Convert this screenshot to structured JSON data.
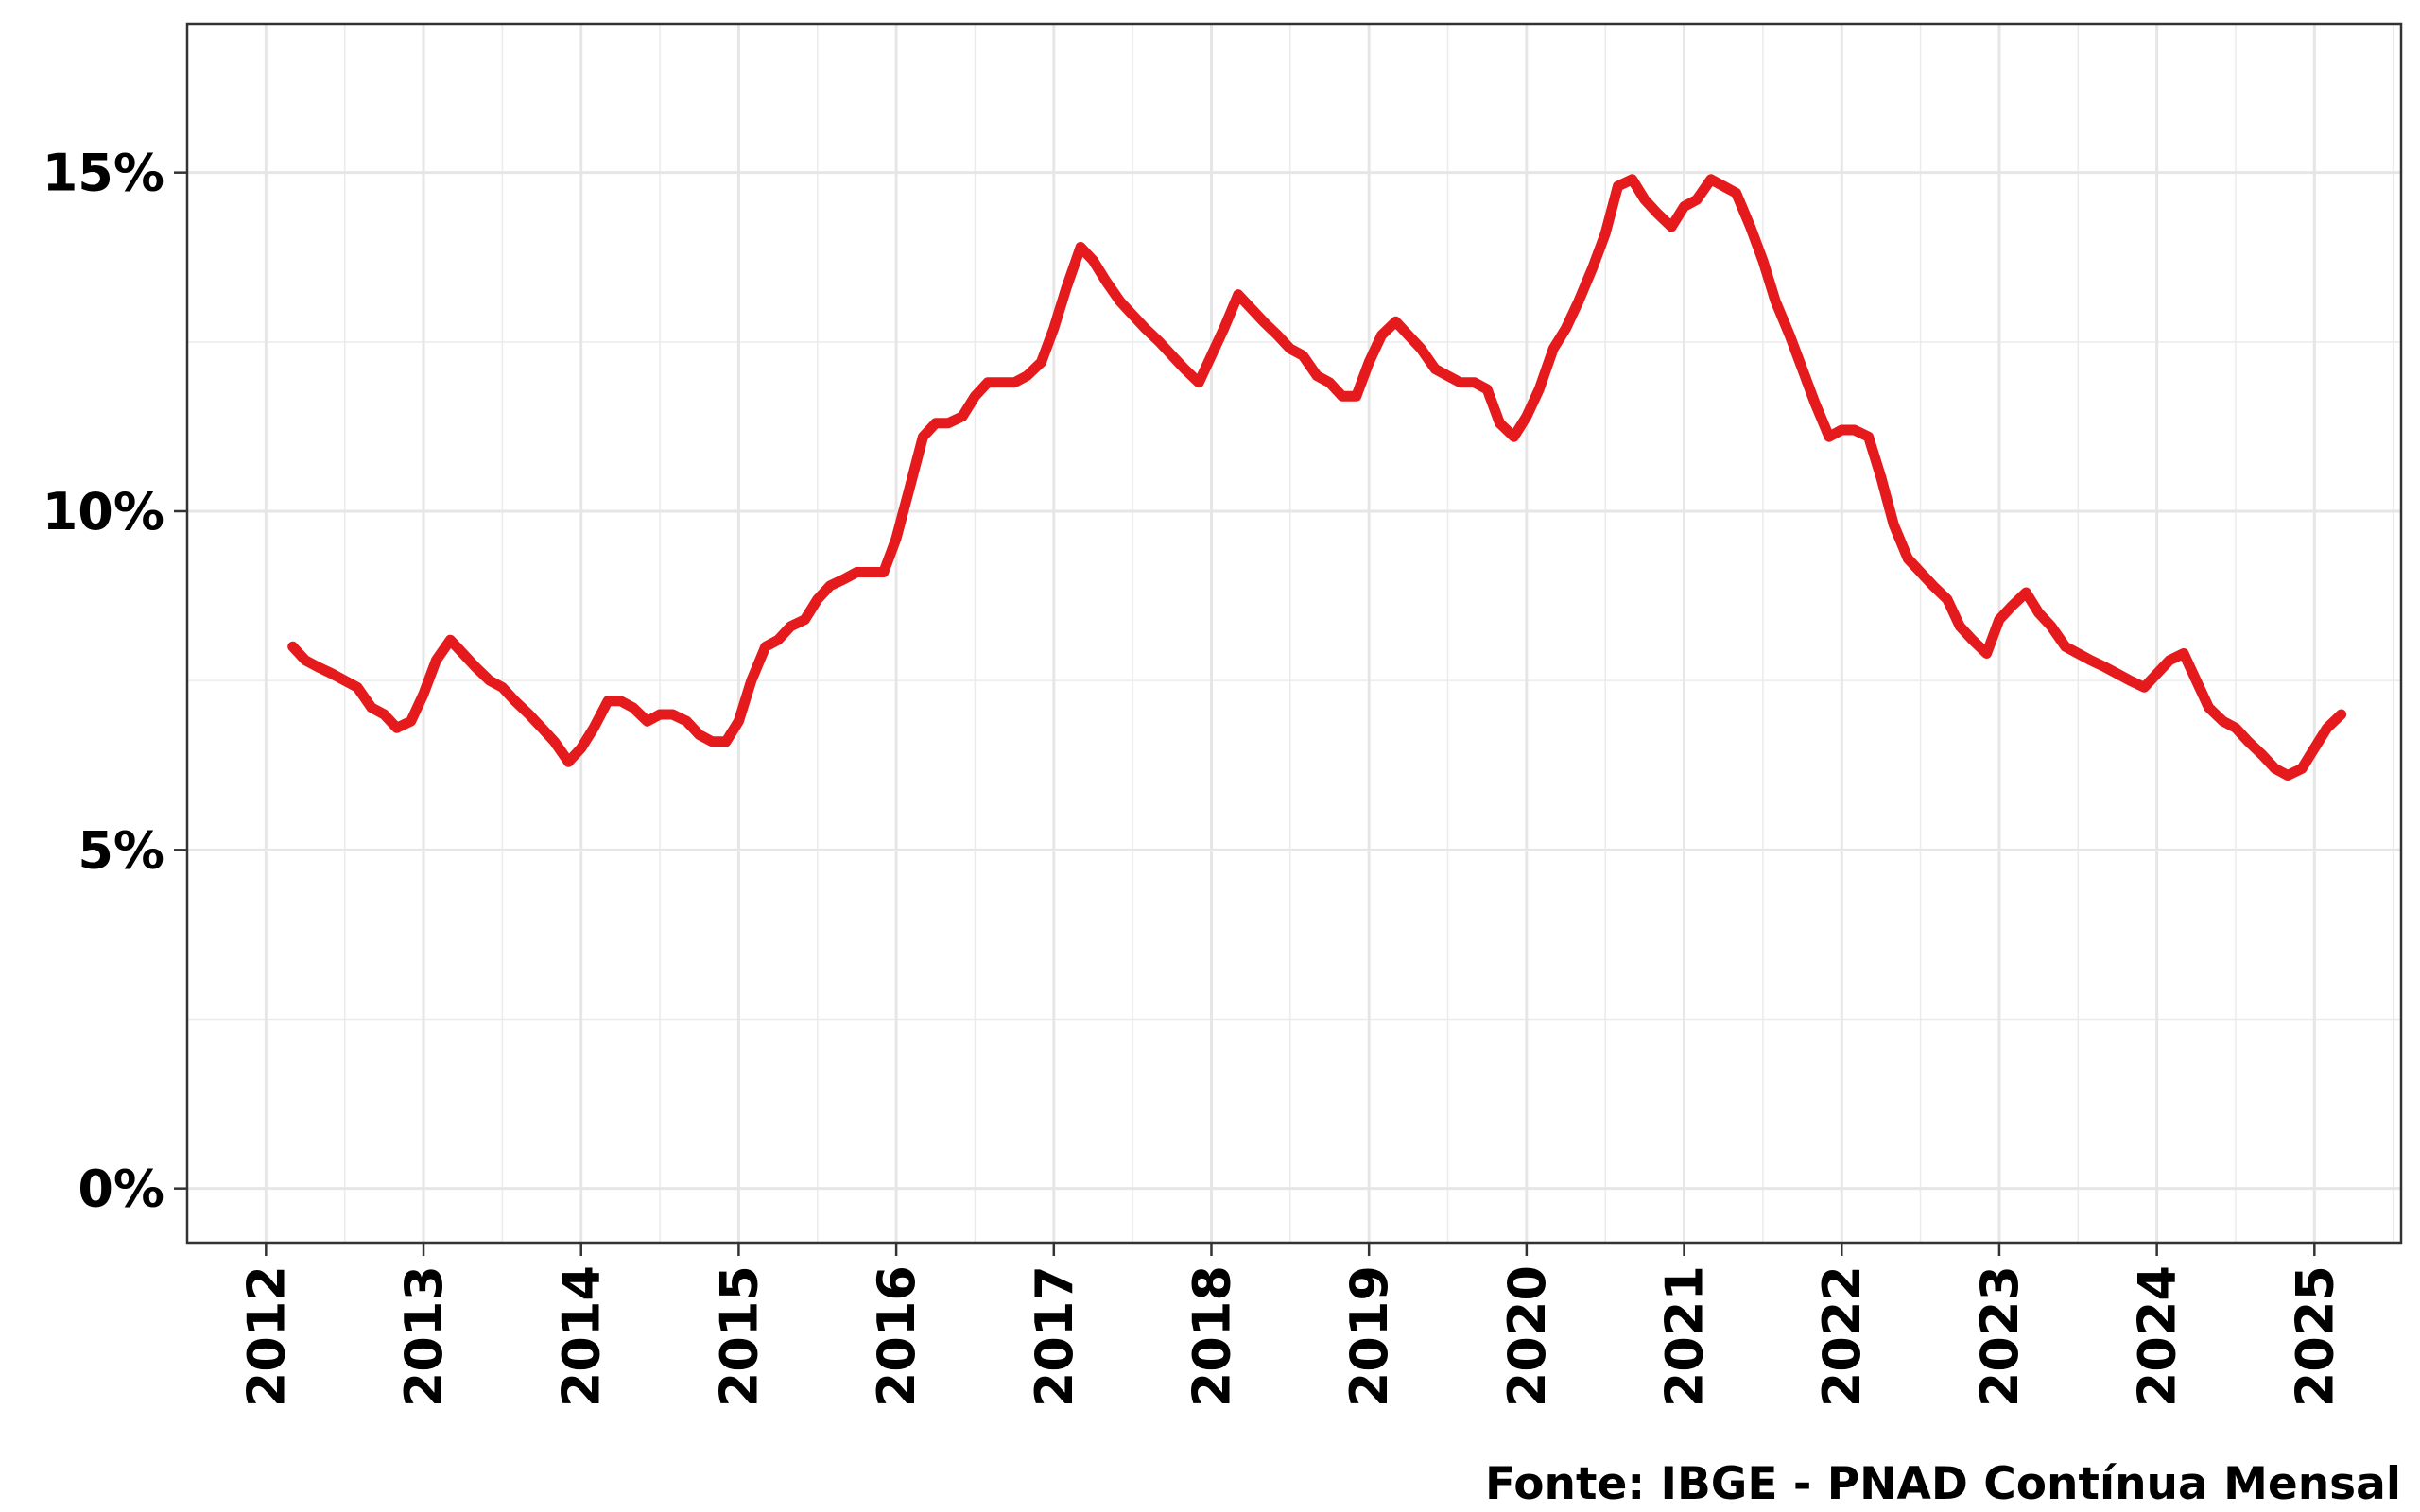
{
  "caption": "Fonte: IBGE - PNAD Contínua Mensal",
  "chart_data": {
    "type": "line",
    "title": "",
    "xlabel": "",
    "ylabel": "",
    "xlim": [
      2011.5,
      2025.55
    ],
    "ylim": [
      -0.8,
      17.2
    ],
    "y_ticks": [
      {
        "value": 0,
        "label": "0%"
      },
      {
        "value": 5,
        "label": "5%"
      },
      {
        "value": 10,
        "label": "10%"
      },
      {
        "value": 15,
        "label": "15%"
      }
    ],
    "y_minor_ticks": [
      2.5,
      7.5,
      12.5
    ],
    "x_ticks": [
      {
        "value": 2012,
        "label": "2012"
      },
      {
        "value": 2013,
        "label": "2013"
      },
      {
        "value": 2014,
        "label": "2014"
      },
      {
        "value": 2015,
        "label": "2015"
      },
      {
        "value": 2016,
        "label": "2016"
      },
      {
        "value": 2017,
        "label": "2017"
      },
      {
        "value": 2018,
        "label": "2018"
      },
      {
        "value": 2019,
        "label": "2019"
      },
      {
        "value": 2020,
        "label": "2020"
      },
      {
        "value": 2021,
        "label": "2021"
      },
      {
        "value": 2022,
        "label": "2022"
      },
      {
        "value": 2023,
        "label": "2023"
      },
      {
        "value": 2024,
        "label": "2024"
      },
      {
        "value": 2025,
        "label": "2025"
      }
    ],
    "x_minor_ticks": [
      2012.5,
      2013.5,
      2014.5,
      2015.5,
      2016.5,
      2017.5,
      2018.5,
      2019.5,
      2020.5,
      2021.5,
      2022.5,
      2023.5,
      2024.5,
      2025.5
    ],
    "grid": true,
    "line_color": "#e41a1c",
    "series": [
      {
        "name": "",
        "x": [
          2012.17,
          2012.25,
          2012.33,
          2012.42,
          2012.5,
          2012.58,
          2012.67,
          2012.75,
          2012.83,
          2012.92,
          2013.0,
          2013.08,
          2013.17,
          2013.25,
          2013.33,
          2013.42,
          2013.5,
          2013.58,
          2013.67,
          2013.75,
          2013.83,
          2013.92,
          2014.0,
          2014.08,
          2014.17,
          2014.25,
          2014.33,
          2014.42,
          2014.5,
          2014.58,
          2014.67,
          2014.75,
          2014.83,
          2014.92,
          2015.0,
          2015.08,
          2015.17,
          2015.25,
          2015.33,
          2015.42,
          2015.5,
          2015.58,
          2015.67,
          2015.75,
          2015.83,
          2015.92,
          2016.0,
          2016.08,
          2016.17,
          2016.25,
          2016.33,
          2016.42,
          2016.5,
          2016.58,
          2016.67,
          2016.75,
          2016.83,
          2016.92,
          2017.0,
          2017.08,
          2017.17,
          2017.25,
          2017.33,
          2017.42,
          2017.5,
          2017.58,
          2017.67,
          2017.75,
          2017.83,
          2017.92,
          2018.0,
          2018.08,
          2018.17,
          2018.25,
          2018.33,
          2018.42,
          2018.5,
          2018.58,
          2018.67,
          2018.75,
          2018.83,
          2018.92,
          2019.0,
          2019.08,
          2019.17,
          2019.25,
          2019.33,
          2019.42,
          2019.5,
          2019.58,
          2019.67,
          2019.75,
          2019.83,
          2019.92,
          2020.0,
          2020.08,
          2020.17,
          2020.25,
          2020.33,
          2020.42,
          2020.5,
          2020.58,
          2020.67,
          2020.75,
          2020.83,
          2020.92,
          2021.0,
          2021.08,
          2021.17,
          2021.25,
          2021.33,
          2021.42,
          2021.5,
          2021.58,
          2021.67,
          2021.75,
          2021.83,
          2021.92,
          2022.0,
          2022.08,
          2022.17,
          2022.25,
          2022.33,
          2022.42,
          2022.5,
          2022.58,
          2022.67,
          2022.75,
          2022.83,
          2022.92,
          2023.0,
          2023.08,
          2023.17,
          2023.25,
          2023.33,
          2023.42,
          2023.5,
          2023.58,
          2023.67,
          2023.75,
          2023.83,
          2023.92,
          2024.0,
          2024.08,
          2024.17,
          2024.25,
          2024.33,
          2024.42,
          2024.5,
          2024.58,
          2024.67,
          2024.75,
          2024.83,
          2024.92,
          2025.0,
          2025.08,
          2025.17
        ],
        "values": [
          8.0,
          7.8,
          7.7,
          7.6,
          7.5,
          7.4,
          7.1,
          7.0,
          6.8,
          6.9,
          7.3,
          7.8,
          8.1,
          7.9,
          7.7,
          7.5,
          7.4,
          7.2,
          7.0,
          6.8,
          6.6,
          6.3,
          6.5,
          6.8,
          7.2,
          7.2,
          7.1,
          6.9,
          7.0,
          7.0,
          6.9,
          6.7,
          6.6,
          6.6,
          6.9,
          7.5,
          8.0,
          8.1,
          8.3,
          8.4,
          8.7,
          8.9,
          9.0,
          9.1,
          9.1,
          9.1,
          9.6,
          10.3,
          11.1,
          11.3,
          11.3,
          11.4,
          11.7,
          11.9,
          11.9,
          11.9,
          12.0,
          12.2,
          12.7,
          13.3,
          13.9,
          13.7,
          13.4,
          13.1,
          12.9,
          12.7,
          12.5,
          12.3,
          12.1,
          11.9,
          12.3,
          12.7,
          13.2,
          13.0,
          12.8,
          12.6,
          12.4,
          12.3,
          12.0,
          11.9,
          11.7,
          11.7,
          12.2,
          12.6,
          12.8,
          12.6,
          12.4,
          12.1,
          12.0,
          11.9,
          11.9,
          11.8,
          11.3,
          11.1,
          11.4,
          11.8,
          12.4,
          12.7,
          13.1,
          13.6,
          14.1,
          14.8,
          14.9,
          14.6,
          14.4,
          14.2,
          14.5,
          14.6,
          14.9,
          14.8,
          14.7,
          14.2,
          13.7,
          13.1,
          12.6,
          12.1,
          11.6,
          11.1,
          11.2,
          11.2,
          11.1,
          10.5,
          9.8,
          9.3,
          9.1,
          8.9,
          8.7,
          8.3,
          8.1,
          7.9,
          8.4,
          8.6,
          8.8,
          8.5,
          8.3,
          8.0,
          7.9,
          7.8,
          7.7,
          7.6,
          7.5,
          7.4,
          7.6,
          7.8,
          7.9,
          7.5,
          7.1,
          6.9,
          6.8,
          6.6,
          6.4,
          6.2,
          6.1,
          6.2,
          6.5,
          6.8,
          7.0
        ]
      }
    ]
  }
}
